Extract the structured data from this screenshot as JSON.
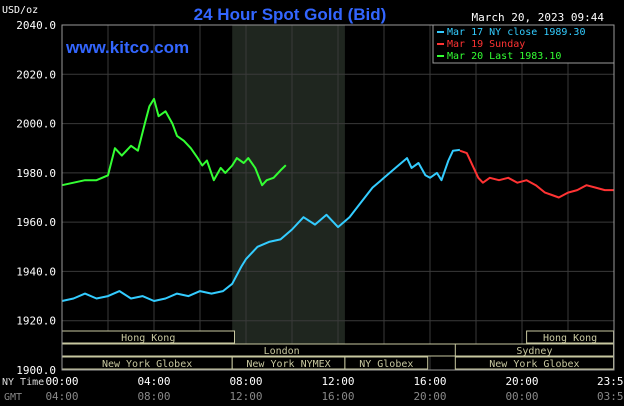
{
  "header": {
    "title": "24 Hour Spot Gold (Bid)",
    "timestamp": "March 20, 2023 09:44",
    "watermark": "www.kitco.com",
    "unit": "USD/oz"
  },
  "legend": [
    {
      "text": "Mar 17 NY close 1989.30",
      "color": "#33ccff"
    },
    {
      "text": "Mar 19 Sunday",
      "color": "#ff3333"
    },
    {
      "text": "Mar 20 Last 1983.10",
      "color": "#33ff33"
    }
  ],
  "timezones": {
    "ny_label": "NY Time",
    "gmt_label": "GMT",
    "ny_ticks": [
      "00:00",
      "04:00",
      "08:00",
      "12:00",
      "16:00",
      "20:00",
      "23:59"
    ],
    "gmt_ticks": [
      "04:00",
      "08:00",
      "12:00",
      "16:00",
      "20:00",
      "00:00",
      "03:59"
    ]
  },
  "sessions": [
    {
      "label": "Hong Kong",
      "start": 0,
      "end": 7.5,
      "row": 0
    },
    {
      "label": "Hong Kong",
      "start": 20.2,
      "end": 23.98,
      "row": 0
    },
    {
      "label": "London",
      "start": 0,
      "end": 19.1,
      "row": 1
    },
    {
      "label": "Sydney",
      "start": 17.1,
      "end": 23.98,
      "row": 1
    },
    {
      "label": "New York Globex",
      "start": 0,
      "end": 7.4,
      "row": 2
    },
    {
      "label": "New York NYMEX",
      "start": 7.4,
      "end": 12.3,
      "row": 2
    },
    {
      "label": "NY Globex",
      "start": 12.3,
      "end": 15.9,
      "row": 2
    },
    {
      "label": "New York Globex",
      "start": 17.1,
      "end": 23.98,
      "row": 2
    }
  ],
  "chart_data": {
    "type": "line",
    "title": "24 Hour Spot Gold (Bid)",
    "ylabel": "USD/oz",
    "xlim": [
      0,
      24
    ],
    "ylim": [
      1900,
      2040
    ],
    "yticks": [
      1900,
      1920,
      1940,
      1960,
      1980,
      2000,
      2020,
      2040
    ],
    "yticklabels": [
      "1900.0",
      "1920.0",
      "1940.0",
      "1960.0",
      "1980.0",
      "2000.0",
      "2020.0",
      "2040.0"
    ],
    "shaded_region": [
      7.4,
      12.3
    ],
    "grid": true,
    "legend_position": "top-right",
    "series": [
      {
        "name": "Mar 17 NY close 1989.30",
        "color": "#33ccff",
        "x": [
          0,
          0.5,
          1,
          1.5,
          2,
          2.5,
          3,
          3.5,
          4,
          4.5,
          5,
          5.5,
          6,
          6.5,
          7,
          7.4,
          7.8,
          8,
          8.5,
          9,
          9.5,
          10,
          10.5,
          11,
          11.5,
          12,
          12.5,
          13,
          13.5,
          14,
          14.5,
          15,
          15.2,
          15.5,
          15.8,
          16,
          16.3,
          16.5,
          16.8,
          17,
          17.3
        ],
        "y": [
          1928,
          1929,
          1931,
          1929,
          1930,
          1932,
          1929,
          1930,
          1928,
          1929,
          1931,
          1930,
          1932,
          1931,
          1932,
          1935,
          1942,
          1945,
          1950,
          1952,
          1953,
          1957,
          1962,
          1959,
          1963,
          1958,
          1962,
          1968,
          1974,
          1978,
          1982,
          1986,
          1982,
          1984,
          1979,
          1978,
          1980,
          1977,
          1985,
          1989,
          1989.3
        ]
      },
      {
        "name": "Mar 19 Sunday",
        "color": "#ff3333",
        "x": [
          17.3,
          17.6,
          17.9,
          18.1,
          18.3,
          18.6,
          19,
          19.4,
          19.8,
          20.2,
          20.6,
          21,
          21.3,
          21.6,
          22,
          22.4,
          22.8,
          23.2,
          23.6,
          23.98
        ],
        "y": [
          1989,
          1988,
          1982,
          1978,
          1976,
          1978,
          1977,
          1978,
          1976,
          1977,
          1975,
          1972,
          1971,
          1970,
          1972,
          1973,
          1975,
          1974,
          1973,
          1973
        ]
      },
      {
        "name": "Mar 20 Last 1983.10",
        "color": "#33ff33",
        "x": [
          0,
          0.5,
          1,
          1.5,
          2,
          2.3,
          2.6,
          3,
          3.3,
          3.6,
          3.8,
          4.0,
          4.2,
          4.5,
          4.8,
          5.0,
          5.3,
          5.6,
          5.9,
          6.1,
          6.3,
          6.6,
          6.9,
          7.1,
          7.4,
          7.6,
          7.9,
          8.1,
          8.4,
          8.7,
          8.9,
          9.2,
          9.5,
          9.73
        ],
        "y": [
          1975,
          1976,
          1977,
          1977,
          1979,
          1990,
          1987,
          1991,
          1989,
          2000,
          2007,
          2010,
          2003,
          2005,
          2000,
          1995,
          1993,
          1990,
          1986,
          1983,
          1985,
          1977,
          1982,
          1980,
          1983,
          1986,
          1984,
          1986,
          1982,
          1975,
          1977,
          1978,
          1981,
          1983.1
        ]
      }
    ]
  }
}
